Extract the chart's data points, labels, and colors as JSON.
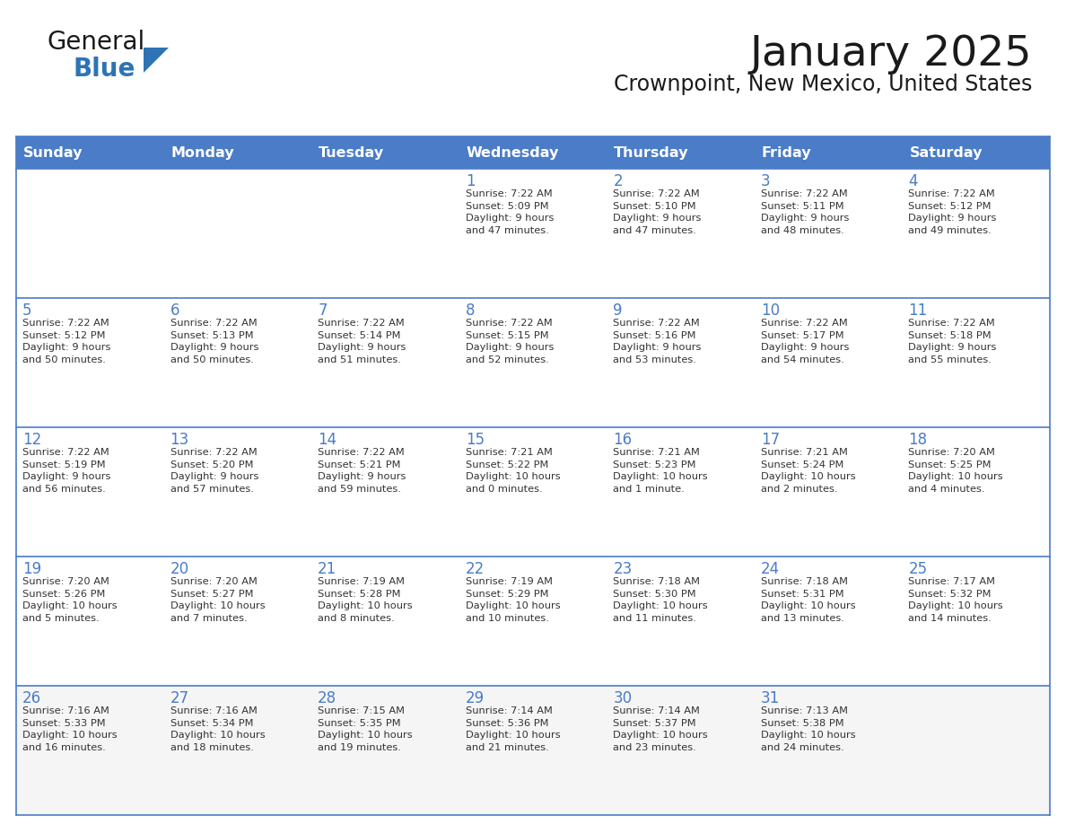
{
  "title": "January 2025",
  "subtitle": "Crownpoint, New Mexico, United States",
  "header_bg": "#4A7CC7",
  "header_text_color": "#FFFFFF",
  "cell_bg": "#FFFFFF",
  "cell_bg_last": "#F5F5F5",
  "border_color": "#4A7CC7",
  "row_divider_color": "#4A7CC7",
  "day_names": [
    "Sunday",
    "Monday",
    "Tuesday",
    "Wednesday",
    "Thursday",
    "Friday",
    "Saturday"
  ],
  "title_color": "#1a1a1a",
  "subtitle_color": "#1a1a1a",
  "general_text_color": "#333333",
  "day_number_color": "#4A7CC7",
  "logo_general_color": "#1a1a1a",
  "logo_blue_color": "#2E74B5",
  "logo_triangle_color": "#2E74B5",
  "calendar_data": [
    [
      {
        "day": "",
        "info": ""
      },
      {
        "day": "",
        "info": ""
      },
      {
        "day": "",
        "info": ""
      },
      {
        "day": "1",
        "info": "Sunrise: 7:22 AM\nSunset: 5:09 PM\nDaylight: 9 hours\nand 47 minutes."
      },
      {
        "day": "2",
        "info": "Sunrise: 7:22 AM\nSunset: 5:10 PM\nDaylight: 9 hours\nand 47 minutes."
      },
      {
        "day": "3",
        "info": "Sunrise: 7:22 AM\nSunset: 5:11 PM\nDaylight: 9 hours\nand 48 minutes."
      },
      {
        "day": "4",
        "info": "Sunrise: 7:22 AM\nSunset: 5:12 PM\nDaylight: 9 hours\nand 49 minutes."
      }
    ],
    [
      {
        "day": "5",
        "info": "Sunrise: 7:22 AM\nSunset: 5:12 PM\nDaylight: 9 hours\nand 50 minutes."
      },
      {
        "day": "6",
        "info": "Sunrise: 7:22 AM\nSunset: 5:13 PM\nDaylight: 9 hours\nand 50 minutes."
      },
      {
        "day": "7",
        "info": "Sunrise: 7:22 AM\nSunset: 5:14 PM\nDaylight: 9 hours\nand 51 minutes."
      },
      {
        "day": "8",
        "info": "Sunrise: 7:22 AM\nSunset: 5:15 PM\nDaylight: 9 hours\nand 52 minutes."
      },
      {
        "day": "9",
        "info": "Sunrise: 7:22 AM\nSunset: 5:16 PM\nDaylight: 9 hours\nand 53 minutes."
      },
      {
        "day": "10",
        "info": "Sunrise: 7:22 AM\nSunset: 5:17 PM\nDaylight: 9 hours\nand 54 minutes."
      },
      {
        "day": "11",
        "info": "Sunrise: 7:22 AM\nSunset: 5:18 PM\nDaylight: 9 hours\nand 55 minutes."
      }
    ],
    [
      {
        "day": "12",
        "info": "Sunrise: 7:22 AM\nSunset: 5:19 PM\nDaylight: 9 hours\nand 56 minutes."
      },
      {
        "day": "13",
        "info": "Sunrise: 7:22 AM\nSunset: 5:20 PM\nDaylight: 9 hours\nand 57 minutes."
      },
      {
        "day": "14",
        "info": "Sunrise: 7:22 AM\nSunset: 5:21 PM\nDaylight: 9 hours\nand 59 minutes."
      },
      {
        "day": "15",
        "info": "Sunrise: 7:21 AM\nSunset: 5:22 PM\nDaylight: 10 hours\nand 0 minutes."
      },
      {
        "day": "16",
        "info": "Sunrise: 7:21 AM\nSunset: 5:23 PM\nDaylight: 10 hours\nand 1 minute."
      },
      {
        "day": "17",
        "info": "Sunrise: 7:21 AM\nSunset: 5:24 PM\nDaylight: 10 hours\nand 2 minutes."
      },
      {
        "day": "18",
        "info": "Sunrise: 7:20 AM\nSunset: 5:25 PM\nDaylight: 10 hours\nand 4 minutes."
      }
    ],
    [
      {
        "day": "19",
        "info": "Sunrise: 7:20 AM\nSunset: 5:26 PM\nDaylight: 10 hours\nand 5 minutes."
      },
      {
        "day": "20",
        "info": "Sunrise: 7:20 AM\nSunset: 5:27 PM\nDaylight: 10 hours\nand 7 minutes."
      },
      {
        "day": "21",
        "info": "Sunrise: 7:19 AM\nSunset: 5:28 PM\nDaylight: 10 hours\nand 8 minutes."
      },
      {
        "day": "22",
        "info": "Sunrise: 7:19 AM\nSunset: 5:29 PM\nDaylight: 10 hours\nand 10 minutes."
      },
      {
        "day": "23",
        "info": "Sunrise: 7:18 AM\nSunset: 5:30 PM\nDaylight: 10 hours\nand 11 minutes."
      },
      {
        "day": "24",
        "info": "Sunrise: 7:18 AM\nSunset: 5:31 PM\nDaylight: 10 hours\nand 13 minutes."
      },
      {
        "day": "25",
        "info": "Sunrise: 7:17 AM\nSunset: 5:32 PM\nDaylight: 10 hours\nand 14 minutes."
      }
    ],
    [
      {
        "day": "26",
        "info": "Sunrise: 7:16 AM\nSunset: 5:33 PM\nDaylight: 10 hours\nand 16 minutes."
      },
      {
        "day": "27",
        "info": "Sunrise: 7:16 AM\nSunset: 5:34 PM\nDaylight: 10 hours\nand 18 minutes."
      },
      {
        "day": "28",
        "info": "Sunrise: 7:15 AM\nSunset: 5:35 PM\nDaylight: 10 hours\nand 19 minutes."
      },
      {
        "day": "29",
        "info": "Sunrise: 7:14 AM\nSunset: 5:36 PM\nDaylight: 10 hours\nand 21 minutes."
      },
      {
        "day": "30",
        "info": "Sunrise: 7:14 AM\nSunset: 5:37 PM\nDaylight: 10 hours\nand 23 minutes."
      },
      {
        "day": "31",
        "info": "Sunrise: 7:13 AM\nSunset: 5:38 PM\nDaylight: 10 hours\nand 24 minutes."
      },
      {
        "day": "",
        "info": ""
      }
    ]
  ]
}
